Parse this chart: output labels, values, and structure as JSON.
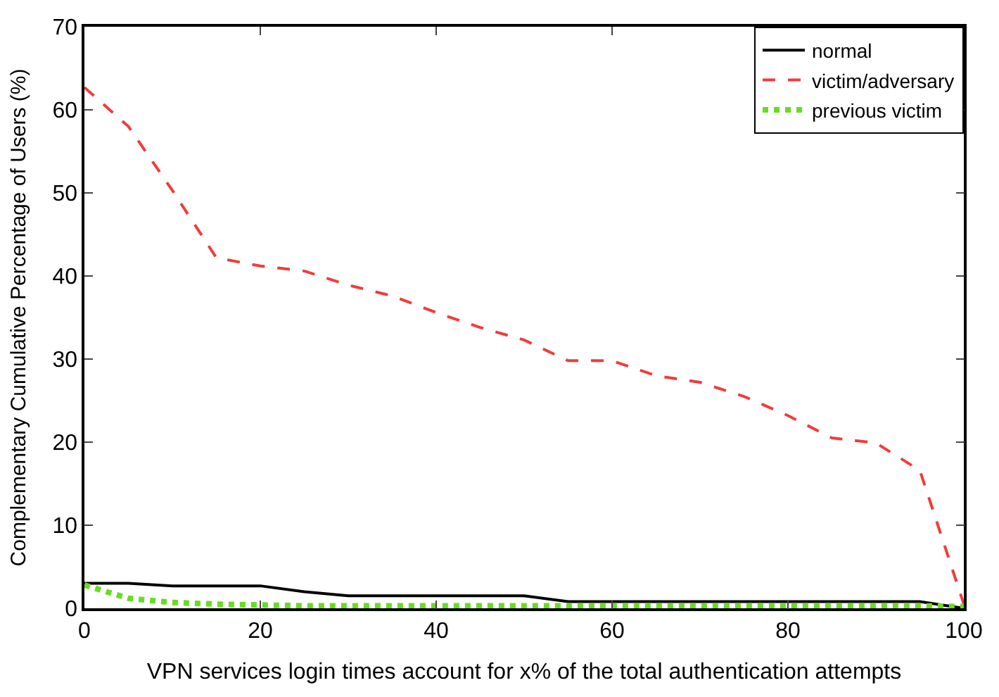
{
  "chart_data": {
    "type": "line",
    "xlabel": "VPN services login times account for x% of the total authentication attempts",
    "ylabel": "Complementary Cumulative Percentage of Users (%)",
    "x": [
      0,
      5,
      10,
      15,
      20,
      25,
      30,
      35,
      40,
      45,
      50,
      55,
      60,
      65,
      70,
      75,
      80,
      85,
      90,
      95,
      100
    ],
    "series": [
      {
        "name": "normal",
        "color": "#000000",
        "line_style": "solid",
        "values": [
          3,
          3,
          2.7,
          2.7,
          2.7,
          2,
          1.5,
          1.5,
          1.5,
          1.5,
          1.5,
          0.8,
          0.8,
          0.8,
          0.8,
          0.8,
          0.8,
          0.8,
          0.8,
          0.8,
          0
        ]
      },
      {
        "name": "victim/adversary",
        "color": "#f03c3c",
        "line_style": "dashed",
        "values": [
          62.7,
          58,
          50.3,
          42.2,
          41.2,
          40.6,
          38.9,
          37.6,
          35.6,
          33.8,
          32.3,
          29.8,
          29.8,
          28,
          27.2,
          25.5,
          23.2,
          20.5,
          19.9,
          16.6,
          0.5
        ]
      },
      {
        "name": "previous victim",
        "color": "#66dd22",
        "line_style": "dotted",
        "values": [
          2.8,
          1.2,
          0.7,
          0.5,
          0.4,
          0.3,
          0.3,
          0.3,
          0.3,
          0.3,
          0.3,
          0.3,
          0.3,
          0.3,
          0.3,
          0.3,
          0.3,
          0.3,
          0.3,
          0.3,
          0.2
        ]
      }
    ],
    "xlim": [
      0,
      100
    ],
    "xticks": [
      0,
      20,
      40,
      60,
      80,
      100
    ],
    "ylim": [
      0,
      70
    ],
    "yticks": [
      0,
      10,
      20,
      30,
      40,
      50,
      60,
      70
    ],
    "legend": "top right",
    "marker": "none"
  }
}
